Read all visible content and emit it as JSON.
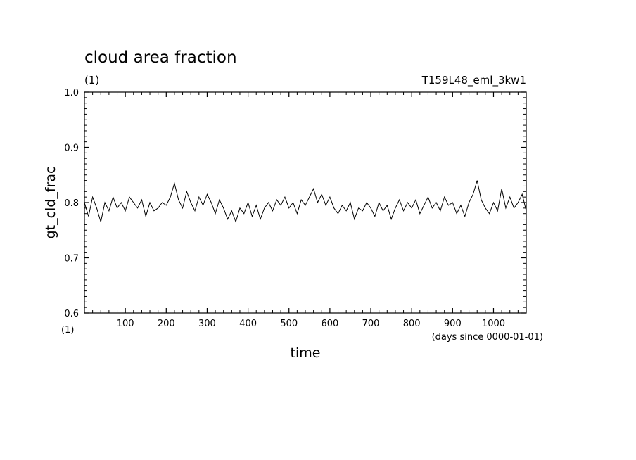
{
  "chart_data": {
    "type": "line",
    "title": "cloud area fraction",
    "subtitle_left": "(1)",
    "subtitle_right": "T159L48_eml_3kw1",
    "xlabel": "time",
    "x_unit": "(days since 0000-01-01)",
    "ylabel": "gt_cld_frac",
    "y_unit": "(1)",
    "xlim": [
      0,
      1080
    ],
    "ylim": [
      0.6,
      1.0
    ],
    "x_ticks": [
      100,
      200,
      300,
      400,
      500,
      600,
      700,
      800,
      900,
      1000
    ],
    "x_tick_labels": [
      "100",
      "200",
      "300",
      "400",
      "500",
      "600",
      "700",
      "800",
      "900",
      "1000"
    ],
    "y_ticks": [
      0.6,
      0.7,
      0.8,
      0.9,
      1.0
    ],
    "y_tick_labels": [
      "0.6",
      "0.7",
      "0.8",
      "0.9",
      "1.0"
    ],
    "grid": false,
    "series": [
      {
        "x": [
          0,
          10,
          20,
          30,
          40,
          50,
          60,
          70,
          80,
          90,
          100,
          110,
          120,
          130,
          140,
          150,
          160,
          170,
          180,
          190,
          200,
          210,
          220,
          230,
          240,
          250,
          260,
          270,
          280,
          290,
          300,
          310,
          320,
          330,
          340,
          350,
          360,
          370,
          380,
          390,
          400,
          410,
          420,
          430,
          440,
          450,
          460,
          470,
          480,
          490,
          500,
          510,
          520,
          530,
          540,
          550,
          560,
          570,
          580,
          590,
          600,
          610,
          620,
          630,
          640,
          650,
          660,
          670,
          680,
          690,
          700,
          710,
          720,
          730,
          740,
          750,
          760,
          770,
          780,
          790,
          800,
          810,
          820,
          830,
          840,
          850,
          860,
          870,
          880,
          890,
          900,
          910,
          920,
          930,
          940,
          950,
          960,
          970,
          980,
          990,
          1000,
          1010,
          1020,
          1030,
          1040,
          1050,
          1060,
          1070,
          1080
        ],
        "y": [
          0.8,
          0.775,
          0.81,
          0.79,
          0.765,
          0.8,
          0.785,
          0.81,
          0.79,
          0.8,
          0.785,
          0.81,
          0.8,
          0.79,
          0.805,
          0.775,
          0.8,
          0.785,
          0.79,
          0.8,
          0.795,
          0.81,
          0.835,
          0.805,
          0.79,
          0.82,
          0.8,
          0.785,
          0.81,
          0.795,
          0.815,
          0.8,
          0.78,
          0.805,
          0.79,
          0.77,
          0.785,
          0.765,
          0.79,
          0.78,
          0.8,
          0.775,
          0.795,
          0.77,
          0.79,
          0.8,
          0.785,
          0.805,
          0.795,
          0.81,
          0.79,
          0.8,
          0.78,
          0.805,
          0.795,
          0.81,
          0.825,
          0.8,
          0.815,
          0.795,
          0.81,
          0.79,
          0.78,
          0.795,
          0.785,
          0.8,
          0.77,
          0.79,
          0.785,
          0.8,
          0.79,
          0.775,
          0.8,
          0.785,
          0.795,
          0.77,
          0.79,
          0.805,
          0.785,
          0.8,
          0.79,
          0.805,
          0.78,
          0.795,
          0.81,
          0.79,
          0.8,
          0.785,
          0.81,
          0.795,
          0.8,
          0.78,
          0.795,
          0.775,
          0.8,
          0.815,
          0.84,
          0.805,
          0.79,
          0.78,
          0.8,
          0.785,
          0.825,
          0.79,
          0.81,
          0.79,
          0.8,
          0.815,
          0.785
        ]
      }
    ]
  }
}
